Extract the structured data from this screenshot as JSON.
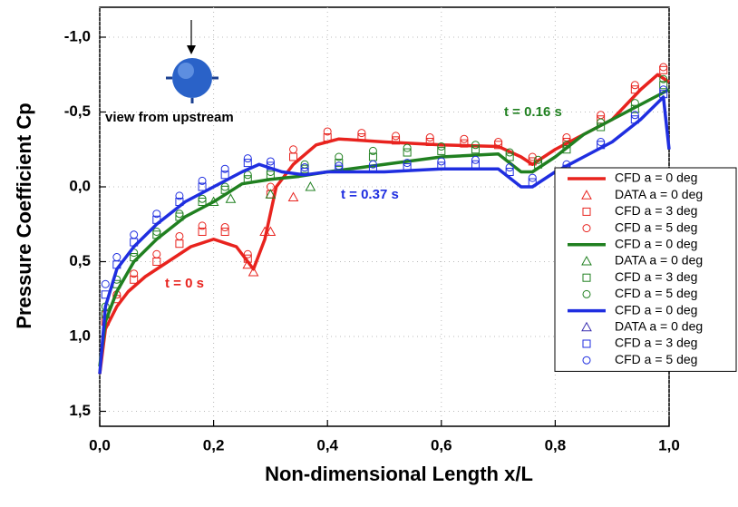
{
  "chart_data": {
    "type": "line",
    "xlabel": "Non-dimensional Length x/L",
    "ylabel": "Pressure Coefficient Cp",
    "xlim": [
      0,
      1
    ],
    "ylim": [
      1.6,
      -1.2
    ],
    "xticks": [
      {
        "value": 0,
        "label": "0,0"
      },
      {
        "value": 0.2,
        "label": "0,2"
      },
      {
        "value": 0.4,
        "label": "0,4"
      },
      {
        "value": 0.6,
        "label": "0,6"
      },
      {
        "value": 0.8,
        "label": "0,8"
      },
      {
        "value": 1,
        "label": "1,0"
      }
    ],
    "yticks": [
      {
        "value": -1,
        "label": "-1,0"
      },
      {
        "value": -0.5,
        "label": "-0,5"
      },
      {
        "value": 0,
        "label": "0,0"
      },
      {
        "value": 0.5,
        "label": "0,5"
      },
      {
        "value": 1,
        "label": "1,0"
      },
      {
        "value": 1.5,
        "label": "1,5"
      }
    ],
    "grid": true,
    "legend": "lower right",
    "annotations": [
      "t = 0 s",
      "t = 0.37 s",
      "t = 0.16 s",
      "view from upstream"
    ],
    "series": [
      {
        "name": "CFD a = 0 deg",
        "color": "#e8231e",
        "marker": "line",
        "x": [
          0,
          0.01,
          0.03,
          0.05,
          0.08,
          0.12,
          0.16,
          0.2,
          0.24,
          0.27,
          0.29,
          0.31,
          0.34,
          0.38,
          0.42,
          0.5,
          0.6,
          0.7,
          0.74,
          0.76,
          0.8,
          0.85,
          0.9,
          0.95,
          0.98,
          1.0
        ],
        "values": [
          1.25,
          0.95,
          0.8,
          0.7,
          0.6,
          0.5,
          0.4,
          0.35,
          0.4,
          0.55,
          0.35,
          0.0,
          -0.15,
          -0.28,
          -0.32,
          -0.3,
          -0.28,
          -0.27,
          -0.2,
          -0.15,
          -0.25,
          -0.35,
          -0.45,
          -0.65,
          -0.75,
          -0.7
        ]
      },
      {
        "name": "DATA a = 0 deg",
        "color": "#e8231e",
        "marker": "triangle",
        "x": [
          0.26,
          0.27,
          0.29,
          0.3,
          0.34
        ],
        "values": [
          0.52,
          0.57,
          0.3,
          0.3,
          0.07
        ]
      },
      {
        "name": "CFD a = 3 deg",
        "color": "#e8231e",
        "marker": "square",
        "x": [
          0.01,
          0.03,
          0.06,
          0.1,
          0.14,
          0.18,
          0.22,
          0.26,
          0.3,
          0.34,
          0.4,
          0.46,
          0.52,
          0.58,
          0.64,
          0.7,
          0.76,
          0.82,
          0.88,
          0.94,
          0.99
        ],
        "values": [
          0.9,
          0.75,
          0.62,
          0.5,
          0.38,
          0.3,
          0.3,
          0.48,
          0.05,
          -0.2,
          -0.33,
          -0.33,
          -0.31,
          -0.3,
          -0.29,
          -0.28,
          -0.17,
          -0.3,
          -0.45,
          -0.65,
          -0.78
        ]
      },
      {
        "name": "CFD a = 5 deg",
        "color": "#e8231e",
        "marker": "circle",
        "x": [
          0.01,
          0.03,
          0.06,
          0.1,
          0.14,
          0.18,
          0.22,
          0.26,
          0.3,
          0.34,
          0.4,
          0.46,
          0.52,
          0.58,
          0.64,
          0.7,
          0.76,
          0.82,
          0.88,
          0.94,
          0.99
        ],
        "values": [
          0.85,
          0.72,
          0.58,
          0.45,
          0.33,
          0.26,
          0.27,
          0.45,
          0.0,
          -0.25,
          -0.37,
          -0.36,
          -0.34,
          -0.33,
          -0.32,
          -0.3,
          -0.2,
          -0.33,
          -0.48,
          -0.68,
          -0.8
        ]
      },
      {
        "name": "CFD a = 0 deg",
        "color": "#208020",
        "marker": "line",
        "x": [
          0,
          0.01,
          0.03,
          0.06,
          0.1,
          0.15,
          0.2,
          0.25,
          0.3,
          0.35,
          0.4,
          0.5,
          0.6,
          0.7,
          0.74,
          0.76,
          0.8,
          0.85,
          0.9,
          0.95,
          1.0
        ],
        "values": [
          1.2,
          0.9,
          0.7,
          0.5,
          0.35,
          0.2,
          0.1,
          -0.02,
          -0.05,
          -0.07,
          -0.1,
          -0.15,
          -0.2,
          -0.22,
          -0.1,
          -0.1,
          -0.2,
          -0.35,
          -0.45,
          -0.55,
          -0.65
        ]
      },
      {
        "name": "DATA a = 0 deg",
        "color": "#208020",
        "marker": "triangle",
        "x": [
          0.2,
          0.23,
          0.3,
          0.37
        ],
        "values": [
          0.1,
          0.08,
          0.05,
          0.0
        ]
      },
      {
        "name": "CFD a = 3 deg",
        "color": "#208020",
        "marker": "square",
        "x": [
          0.01,
          0.03,
          0.06,
          0.1,
          0.14,
          0.18,
          0.22,
          0.26,
          0.3,
          0.36,
          0.42,
          0.48,
          0.54,
          0.6,
          0.66,
          0.72,
          0.77,
          0.82,
          0.88,
          0.94,
          0.99
        ],
        "values": [
          0.85,
          0.65,
          0.47,
          0.32,
          0.2,
          0.1,
          0.02,
          -0.05,
          -0.08,
          -0.12,
          -0.16,
          -0.2,
          -0.23,
          -0.24,
          -0.25,
          -0.2,
          -0.15,
          -0.25,
          -0.4,
          -0.52,
          -0.68
        ]
      },
      {
        "name": "CFD a = 5 deg",
        "color": "#208020",
        "marker": "circle",
        "x": [
          0.01,
          0.03,
          0.06,
          0.1,
          0.14,
          0.18,
          0.22,
          0.26,
          0.3,
          0.36,
          0.42,
          0.48,
          0.54,
          0.6,
          0.66,
          0.72,
          0.77,
          0.82,
          0.88,
          0.94,
          0.99
        ],
        "values": [
          0.8,
          0.62,
          0.44,
          0.3,
          0.18,
          0.08,
          0.0,
          -0.08,
          -0.1,
          -0.15,
          -0.2,
          -0.24,
          -0.26,
          -0.27,
          -0.28,
          -0.23,
          -0.18,
          -0.28,
          -0.43,
          -0.56,
          -0.72
        ]
      },
      {
        "name": "CFD a = 0 deg",
        "color": "#1f2ee0",
        "marker": "line",
        "x": [
          0,
          0.01,
          0.03,
          0.06,
          0.1,
          0.15,
          0.2,
          0.25,
          0.28,
          0.32,
          0.36,
          0.4,
          0.5,
          0.6,
          0.7,
          0.74,
          0.76,
          0.8,
          0.85,
          0.9,
          0.95,
          0.99,
          1.0
        ],
        "values": [
          1.25,
          0.8,
          0.55,
          0.4,
          0.25,
          0.1,
          0.0,
          -0.1,
          -0.15,
          -0.1,
          -0.08,
          -0.1,
          -0.1,
          -0.12,
          -0.12,
          0.0,
          0.0,
          -0.1,
          -0.2,
          -0.3,
          -0.45,
          -0.6,
          -0.25
        ]
      },
      {
        "name": "DATA a = 0 deg",
        "color": "#3a2fb0",
        "marker": "triangle",
        "x": [],
        "values": []
      },
      {
        "name": "CFD a = 3 deg",
        "color": "#1f2ee0",
        "marker": "square",
        "x": [
          0.01,
          0.03,
          0.06,
          0.1,
          0.14,
          0.18,
          0.22,
          0.26,
          0.3,
          0.36,
          0.42,
          0.48,
          0.54,
          0.6,
          0.66,
          0.72,
          0.76,
          0.82,
          0.88,
          0.94,
          0.99
        ],
        "values": [
          0.72,
          0.52,
          0.37,
          0.22,
          0.1,
          0.0,
          -0.08,
          -0.16,
          -0.14,
          -0.1,
          -0.12,
          -0.12,
          -0.13,
          -0.14,
          -0.15,
          -0.1,
          -0.03,
          -0.12,
          -0.28,
          -0.45,
          -0.62
        ]
      },
      {
        "name": "CFD a = 5 deg",
        "color": "#1f2ee0",
        "marker": "circle",
        "x": [
          0.01,
          0.03,
          0.06,
          0.1,
          0.14,
          0.18,
          0.22,
          0.26,
          0.3,
          0.36,
          0.42,
          0.48,
          0.54,
          0.6,
          0.66,
          0.72,
          0.76,
          0.82,
          0.88,
          0.94,
          0.99
        ],
        "values": [
          0.65,
          0.47,
          0.32,
          0.18,
          0.06,
          -0.04,
          -0.12,
          -0.19,
          -0.17,
          -0.13,
          -0.14,
          -0.15,
          -0.16,
          -0.17,
          -0.18,
          -0.13,
          -0.06,
          -0.15,
          -0.3,
          -0.48,
          -0.65
        ]
      }
    ]
  }
}
